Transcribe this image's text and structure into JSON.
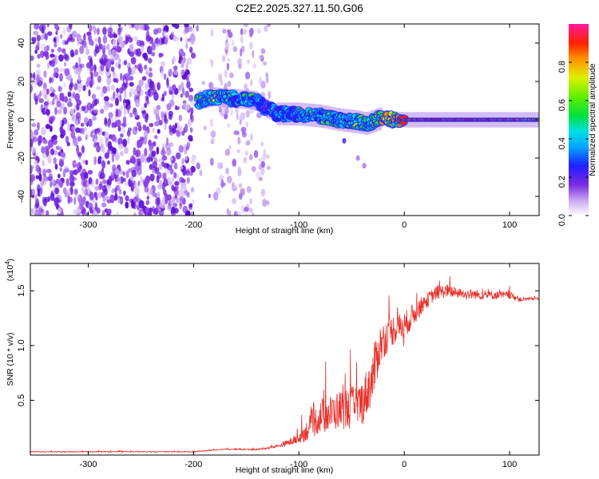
{
  "title": "C2E2.2025.327.11.50.G06",
  "chart_data": [
    {
      "type": "heatmap",
      "xlabel": "Height of straight line (km)",
      "ylabel": "Frequency (Hz)",
      "xlim": [
        -355,
        128
      ],
      "ylim": [
        -50,
        50
      ],
      "xticks": [
        -300,
        -200,
        -100,
        0,
        100
      ],
      "yticks": [
        -40,
        -20,
        0,
        20,
        40
      ],
      "colorbar": {
        "label": "Normalized spectral amplitude",
        "range": [
          0,
          1
        ],
        "ticks": [
          "0.0",
          "0.2",
          "0.4",
          "0.6",
          "0.8"
        ],
        "tick_values": [
          0.0,
          0.2,
          0.4,
          0.6,
          0.8
        ]
      },
      "signal_track": {
        "x": [
          -195,
          -180,
          -160,
          -140,
          -130,
          -120,
          -100,
          -80,
          -60,
          -45,
          -35,
          -20,
          -10,
          0,
          20,
          60,
          100,
          128
        ],
        "freq": [
          10,
          12,
          11,
          10,
          6,
          3,
          3,
          2,
          0,
          -1,
          -2,
          1,
          0,
          0,
          0,
          0,
          0,
          0
        ],
        "amplitude": [
          0.55,
          0.6,
          0.45,
          0.5,
          0.35,
          0.45,
          0.5,
          0.55,
          0.5,
          0.6,
          0.55,
          0.7,
          0.75,
          0.85,
          0.95,
          0.95,
          0.95,
          0.9
        ]
      },
      "noise_region_x": [
        -355,
        -128
      ]
    },
    {
      "type": "line",
      "xlabel": "Height of straight line (km)",
      "ylabel": "SNR (10 * v/v)",
      "y_multiplier": "(x10",
      "y_multiplier_exp": "4",
      "y_multiplier_close": ")",
      "xlim": [
        -355,
        128
      ],
      "ylim": [
        0,
        17500
      ],
      "xticks": [
        -300,
        -200,
        -100,
        0,
        100
      ],
      "yticks": [
        5000,
        10000,
        15000
      ],
      "ytick_labels": [
        "0.5",
        "1.0",
        "1.5"
      ],
      "series": [
        {
          "name": "SNR",
          "color": "#e8302a",
          "x": [
            -355,
            -200,
            -170,
            -140,
            -120,
            -100,
            -90,
            -80,
            -70,
            -60,
            -50,
            -40,
            -30,
            -25,
            -20,
            -10,
            0,
            10,
            20,
            30,
            40,
            50,
            60,
            80,
            100,
            110,
            128
          ],
          "values": [
            300,
            300,
            550,
            500,
            800,
            1500,
            2500,
            3500,
            3800,
            4200,
            4300,
            4800,
            7000,
            9500,
            10500,
            11500,
            11800,
            13000,
            14000,
            14800,
            15000,
            14800,
            14700,
            14600,
            14600,
            14200,
            14300
          ],
          "noise_amp": [
            60,
            60,
            80,
            90,
            200,
            700,
            1600,
            2200,
            2400,
            2600,
            2800,
            3000,
            3400,
            3200,
            2400,
            2000,
            1800,
            1500,
            1000,
            900,
            900,
            700,
            700,
            600,
            500,
            300,
            150
          ]
        }
      ]
    }
  ],
  "colors": {
    "signal": "#e8302a",
    "noise": "#7a2be0"
  }
}
